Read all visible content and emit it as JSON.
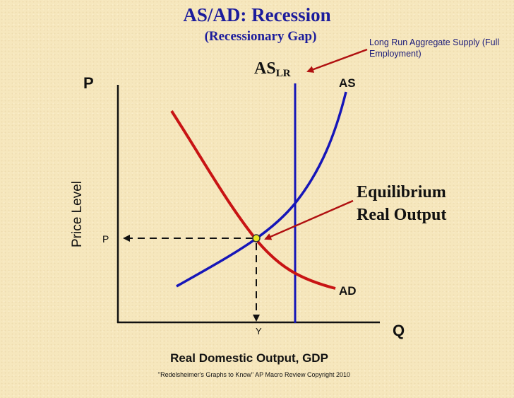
{
  "title": "AS/AD: Recession",
  "subtitle": "(Recessionary Gap)",
  "lr_note": "Long Run Aggregate Supply (Full Employment)",
  "aslr_main": "AS",
  "aslr_sub": "LR",
  "p_axis": "P",
  "q_axis": "Q",
  "y_axis_label": "Price Level",
  "x_axis_label": "Real Domestic Output, GDP",
  "as_label": "AS",
  "ad_label": "AD",
  "equilibrium_line1": "Equilibrium",
  "equilibrium_line2": "Real Output",
  "p_tick": "P",
  "y_tick": "Y",
  "copyright": "\"Redelsheimer's Graphs to Know\"  AP Macro Review Copyright 2010",
  "colors": {
    "title": "#1c1c9c",
    "as_curve": "#1616b8",
    "lras_line": "#1616b8",
    "ad_curve": "#c81414",
    "arrow": "#b01010",
    "equilibrium_point": "#e8e820"
  }
}
